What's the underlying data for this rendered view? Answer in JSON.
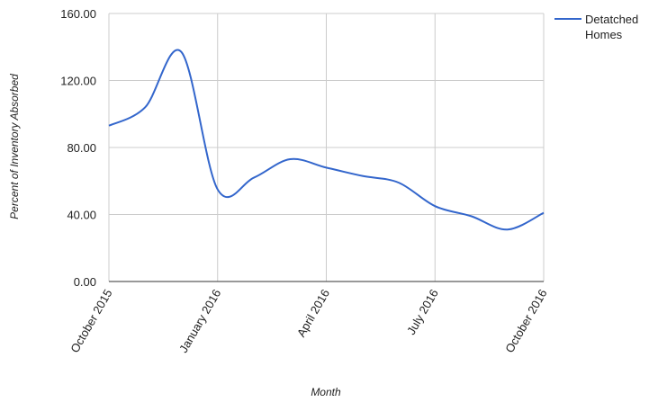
{
  "chart_data": {
    "type": "line",
    "xlabel": "Month",
    "ylabel": "Percent of Inventory Absorbed",
    "ylim": [
      0,
      160
    ],
    "yticks": [
      "0.00",
      "40.00",
      "80.00",
      "120.00",
      "160.00"
    ],
    "xticks": [
      "October 2015",
      "January 2016",
      "April 2016",
      "July 2016",
      "October 2016"
    ],
    "grid": true,
    "legend_position": "right",
    "series": [
      {
        "name": "Detatched Homes",
        "color": "#3366cc",
        "x": [
          "2015-10",
          "2015-11",
          "2015-12",
          "2016-01",
          "2016-02",
          "2016-03",
          "2016-04",
          "2016-05",
          "2016-06",
          "2016-07",
          "2016-08",
          "2016-09",
          "2016-10"
        ],
        "values": [
          93,
          104,
          137,
          55,
          62,
          73,
          68,
          63,
          59,
          45,
          39,
          31,
          41
        ]
      }
    ]
  }
}
